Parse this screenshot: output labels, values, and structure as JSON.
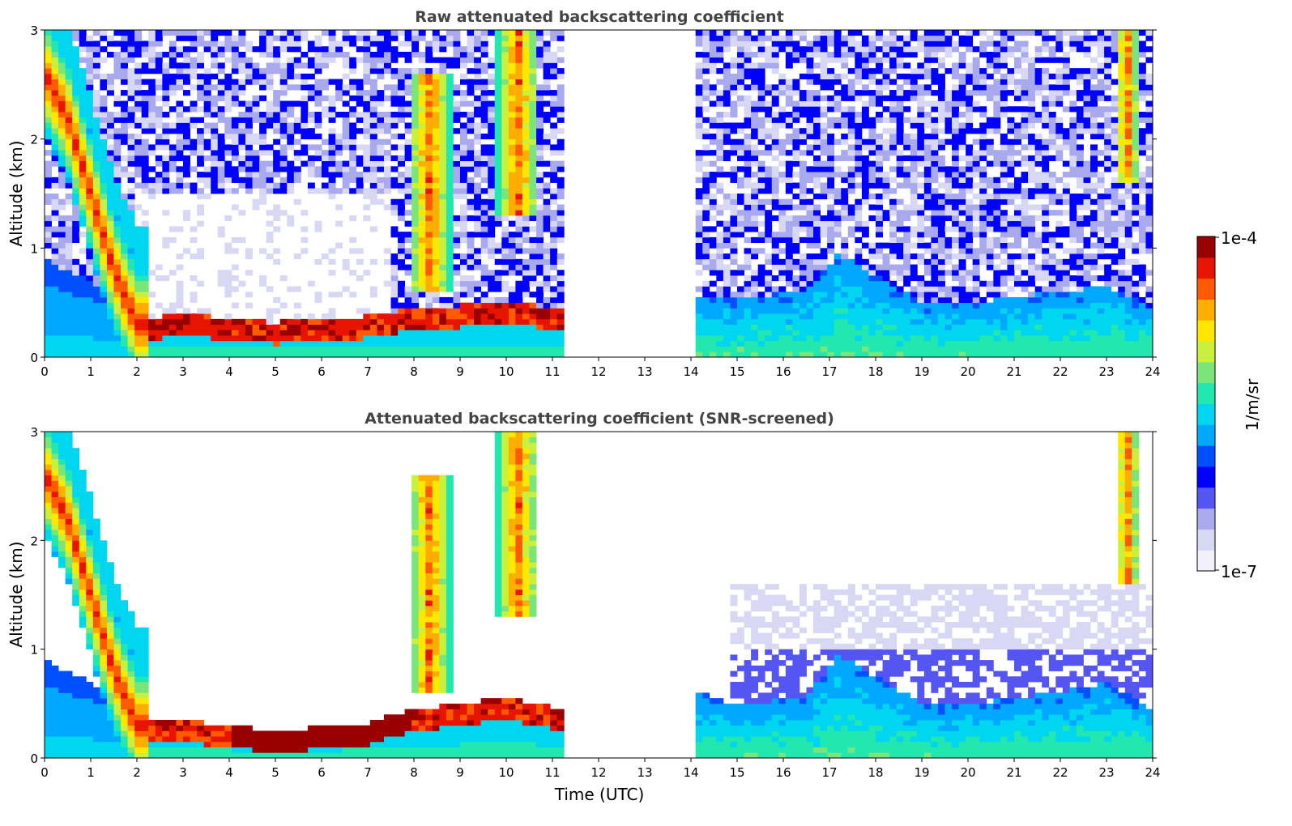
{
  "colorbar": {
    "label": "1/m/sr",
    "max_label": "1e-4",
    "min_label": "1e-7",
    "scale": "log",
    "range": [
      1e-07,
      0.0001
    ],
    "colormap": "jet-like with pale lavender low end",
    "colors": [
      "#f2f0fa",
      "#d8d8f4",
      "#a9a9ee",
      "#5555f2",
      "#0000ff",
      "#0050ff",
      "#00a8ff",
      "#00d6f0",
      "#22e8b0",
      "#7ae67a",
      "#c8f03c",
      "#ffe800",
      "#ffae00",
      "#ff5a00",
      "#e61400",
      "#9a0000"
    ]
  },
  "xlabel": "Time (UTC)",
  "chart_data": [
    {
      "type": "heatmap",
      "title": "Raw attenuated backscattering coefficient",
      "xlabel": "Time (UTC)",
      "ylabel": "Altitude (km)",
      "xlim": [
        0,
        24
      ],
      "ylim": [
        0,
        3
      ],
      "xticks": [
        "0",
        "1",
        "2",
        "3",
        "4",
        "5",
        "6",
        "7",
        "8",
        "9",
        "10",
        "11",
        "12",
        "13",
        "14",
        "15",
        "16",
        "17",
        "18",
        "19",
        "20",
        "21",
        "22",
        "23",
        "24"
      ],
      "yticks": [
        "0",
        "1",
        "2",
        "3"
      ],
      "no_data_intervals": [
        [
          11.3,
          14.1
        ]
      ],
      "features": {
        "boundary_layer_top_km": [
          [
            0,
            0.9
          ],
          [
            1.5,
            0.6
          ],
          [
            2.0,
            0.35
          ],
          [
            3,
            0.4
          ],
          [
            5,
            0.32
          ],
          [
            7,
            0.38
          ],
          [
            8,
            0.45
          ],
          [
            10,
            0.5
          ],
          [
            11.2,
            0.45
          ],
          [
            14.1,
            0.55
          ],
          [
            15,
            0.55
          ],
          [
            16.5,
            0.6
          ],
          [
            17.2,
            0.95
          ],
          [
            18,
            0.75
          ],
          [
            19,
            0.5
          ],
          [
            20,
            0.5
          ],
          [
            21,
            0.55
          ],
          [
            22,
            0.6
          ],
          [
            23,
            0.65
          ],
          [
            23.8,
            0.5
          ],
          [
            24,
            0.45
          ]
        ],
        "descending_aerosol_layer_km": [
          [
            0,
            2.6
          ],
          [
            0.5,
            2.2
          ],
          [
            1.0,
            1.5
          ],
          [
            1.5,
            0.8
          ],
          [
            2.0,
            0.3
          ]
        ],
        "cloud_layers": [
          {
            "t_start": 7.9,
            "t_end": 8.8,
            "alt_bottom_km": 0.6,
            "alt_top_km": 2.6
          },
          {
            "t_start": 9.8,
            "t_end": 10.7,
            "alt_bottom_km": 1.3,
            "alt_top_km": 3.0
          },
          {
            "t_start": 23.2,
            "t_end": 23.7,
            "alt_bottom_km": 1.6,
            "alt_top_km": 3.0
          }
        ]
      }
    },
    {
      "type": "heatmap",
      "title": "Attenuated backscattering coefficient (SNR-screened)",
      "xlabel": "Time (UTC)",
      "ylabel": "Altitude (km)",
      "xlim": [
        0,
        24
      ],
      "ylim": [
        0,
        3
      ],
      "xticks": [
        "0",
        "1",
        "2",
        "3",
        "4",
        "5",
        "6",
        "7",
        "8",
        "9",
        "10",
        "11",
        "12",
        "13",
        "14",
        "15",
        "16",
        "17",
        "18",
        "19",
        "20",
        "21",
        "22",
        "23",
        "24"
      ],
      "yticks": [
        "0",
        "1",
        "2",
        "3"
      ],
      "no_data_intervals": [
        [
          11.3,
          14.1
        ]
      ],
      "screening": "low-SNR pixels removed (white)",
      "features": {
        "boundary_layer_top_km": [
          [
            0,
            0.9
          ],
          [
            1.5,
            0.6
          ],
          [
            2.0,
            0.35
          ],
          [
            3,
            0.35
          ],
          [
            5,
            0.25
          ],
          [
            7,
            0.32
          ],
          [
            8,
            0.45
          ],
          [
            10,
            0.55
          ],
          [
            11.2,
            0.45
          ],
          [
            14.1,
            0.6
          ],
          [
            15,
            0.5
          ],
          [
            16.5,
            0.55
          ],
          [
            17.2,
            0.95
          ],
          [
            18,
            0.75
          ],
          [
            19,
            0.5
          ],
          [
            20,
            0.5
          ],
          [
            21,
            0.55
          ],
          [
            22,
            0.6
          ],
          [
            23,
            0.7
          ],
          [
            23.8,
            0.5
          ],
          [
            24,
            0.45
          ]
        ],
        "retained_upper_signal_top_km": [
          [
            15,
            1.6
          ],
          [
            24,
            1.6
          ]
        ]
      }
    }
  ]
}
